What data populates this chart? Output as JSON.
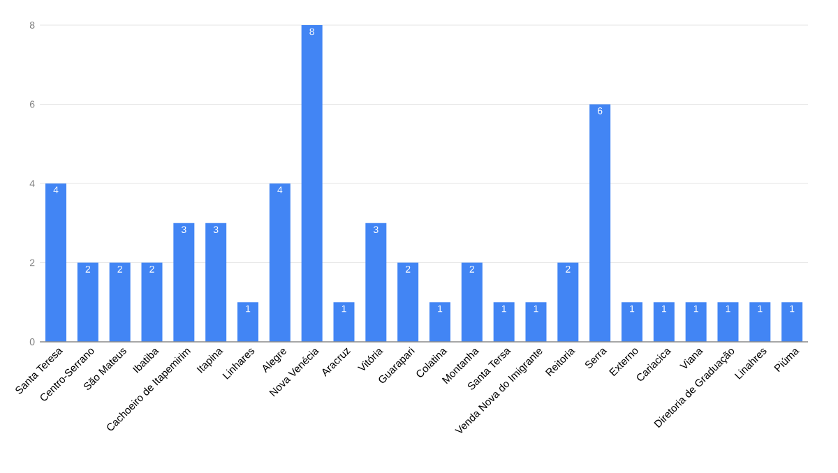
{
  "chart_data": {
    "type": "bar",
    "categories": [
      "Santa Teresa",
      "Centro-Serrano",
      "São Mateus",
      "Ibatiba",
      "Cachoeiro de Itapemirim",
      "Itapina",
      "Linhares",
      "Alegre",
      "Nova Venécia",
      "Aracruz",
      "Vitória",
      "Guarapari",
      "Colatina",
      "Montanha",
      "Santa Tersa",
      "Venda Nova do Imigrante",
      "Reitoria",
      "Serra",
      "Externo",
      "Cariacica",
      "Viana",
      "Diretoria de Graduação",
      "Linahres",
      "Piúma"
    ],
    "values": [
      4,
      2,
      2,
      2,
      3,
      3,
      1,
      4,
      8,
      1,
      3,
      2,
      1,
      2,
      1,
      1,
      2,
      6,
      1,
      1,
      1,
      1,
      1,
      1
    ],
    "color": "#4285f4",
    "ylim": [
      0,
      8
    ],
    "yticks": [
      0,
      2,
      4,
      6,
      8
    ],
    "grid": "y",
    "data_labels": true
  }
}
